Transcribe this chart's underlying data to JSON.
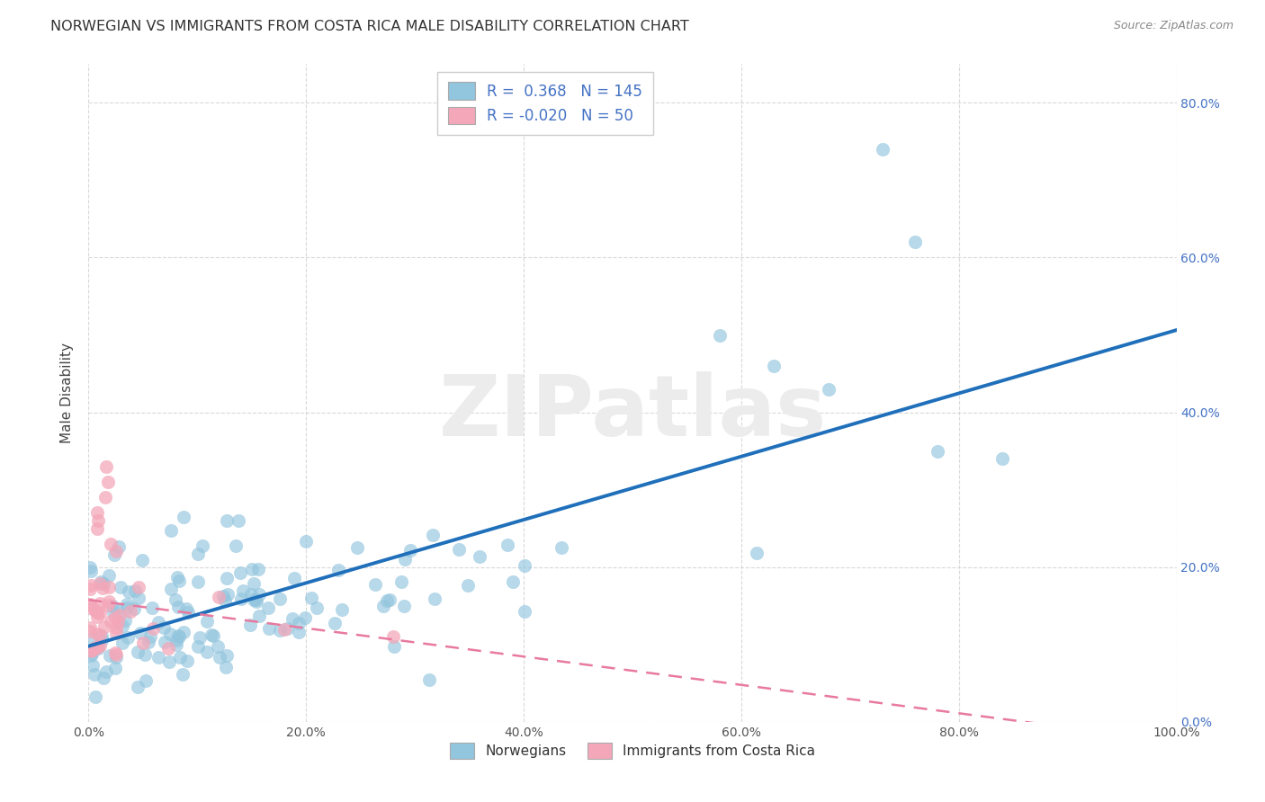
{
  "title": "NORWEGIAN VS IMMIGRANTS FROM COSTA RICA MALE DISABILITY CORRELATION CHART",
  "source": "Source: ZipAtlas.com",
  "ylabel": "Male Disability",
  "legend_labels": [
    "Norwegians",
    "Immigrants from Costa Rica"
  ],
  "blue_color": "#92c5de",
  "blue_line_color": "#1f6fba",
  "pink_color": "#f4a7b9",
  "pink_line_color": "#e87a9f",
  "R_blue": 0.368,
  "N_blue": 145,
  "R_pink": -0.02,
  "N_pink": 50,
  "background_color": "#ffffff",
  "grid_color": "#d0d0d0",
  "xlim": [
    0.0,
    1.0
  ],
  "ylim": [
    0.0,
    0.85
  ],
  "y_ticks": [
    0.0,
    0.2,
    0.4,
    0.6,
    0.8
  ],
  "x_ticks": [
    0.0,
    0.2,
    0.4,
    0.6,
    0.8,
    1.0
  ]
}
